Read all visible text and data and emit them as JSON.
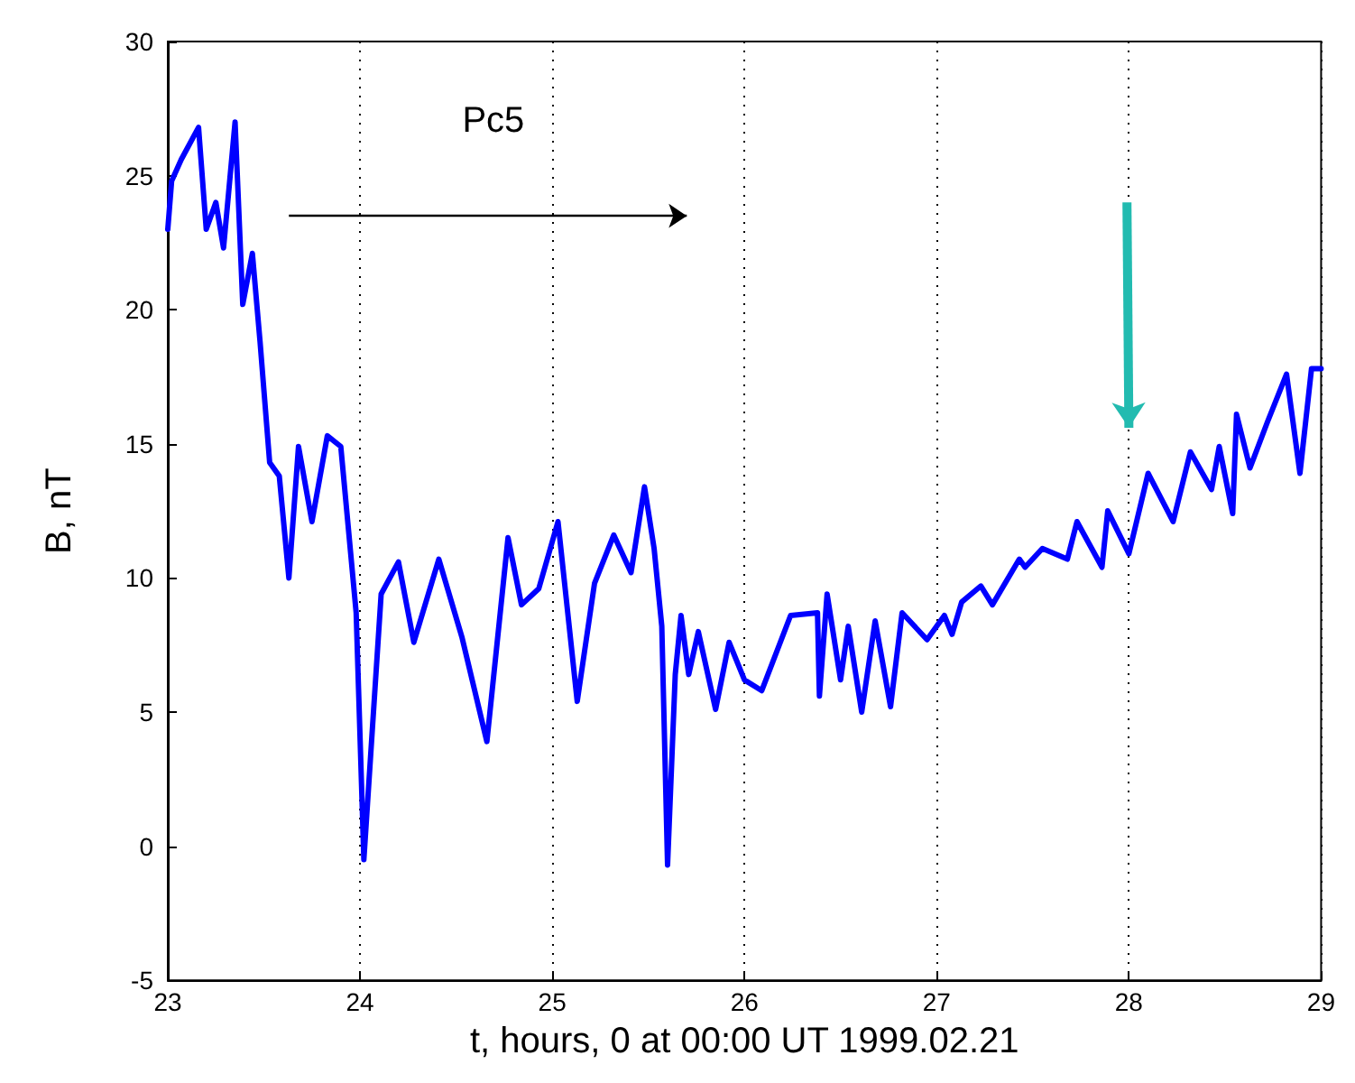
{
  "chart_data": {
    "type": "line",
    "xlabel": "t, hours, 0 at 00:00 UT 1999.02.21",
    "ylabel": "B, nT",
    "x": [
      23.0,
      23.02,
      23.07,
      23.16,
      23.2,
      23.25,
      23.29,
      23.35,
      23.39,
      23.44,
      23.48,
      23.53,
      23.58,
      23.63,
      23.68,
      23.75,
      23.83,
      23.9,
      23.98,
      24.02,
      24.11,
      24.2,
      24.28,
      24.41,
      24.53,
      24.66,
      24.77,
      24.84,
      24.93,
      25.03,
      25.13,
      25.22,
      25.32,
      25.41,
      25.48,
      25.53,
      25.57,
      25.6,
      25.64,
      25.67,
      25.71,
      25.76,
      25.85,
      25.92,
      26.0,
      26.09,
      26.24,
      26.38,
      26.39,
      26.43,
      26.5,
      26.54,
      26.61,
      26.68,
      26.76,
      26.82,
      26.95,
      27.04,
      27.08,
      27.13,
      27.23,
      27.29,
      27.43,
      27.46,
      27.55,
      27.68,
      27.73,
      27.86,
      27.89,
      28.0,
      28.1,
      28.23,
      28.32,
      28.43,
      28.47,
      28.54,
      28.56,
      28.63,
      28.72,
      28.82,
      28.89,
      28.95,
      29.0
    ],
    "series": [
      {
        "color": "#0000ff",
        "values": [
          23.0,
          24.8,
          25.6,
          26.8,
          23.0,
          24.0,
          22.3,
          27.0,
          20.2,
          22.1,
          18.8,
          14.3,
          13.8,
          10.0,
          14.9,
          12.1,
          15.3,
          14.9,
          8.7,
          -0.5,
          9.4,
          10.6,
          7.6,
          10.7,
          7.8,
          3.9,
          11.5,
          9.0,
          9.6,
          12.1,
          5.4,
          9.8,
          11.6,
          10.2,
          13.4,
          11.1,
          8.2,
          -0.7,
          6.4,
          8.6,
          6.4,
          8.0,
          5.1,
          7.6,
          6.2,
          5.8,
          8.6,
          8.7,
          5.6,
          9.4,
          6.2,
          8.2,
          5.0,
          8.4,
          5.2,
          8.7,
          7.7,
          8.6,
          7.9,
          9.1,
          9.7,
          9.0,
          10.7,
          10.4,
          11.1,
          10.7,
          12.1,
          10.4,
          12.5,
          10.9,
          13.9,
          12.1,
          14.7,
          13.3,
          14.9,
          12.4,
          16.1,
          14.1,
          15.8,
          17.6,
          13.9,
          17.8,
          17.8
        ]
      }
    ],
    "xlim": [
      23,
      29
    ],
    "xticks": [
      23,
      24,
      25,
      26,
      27,
      28,
      29
    ],
    "ylim": [
      -5,
      30
    ],
    "yticks": [
      -5,
      0,
      5,
      10,
      15,
      20,
      25,
      30
    ],
    "grid": "x",
    "line_style": "solid",
    "marker": "none",
    "annotations": [
      "Pc5"
    ]
  }
}
